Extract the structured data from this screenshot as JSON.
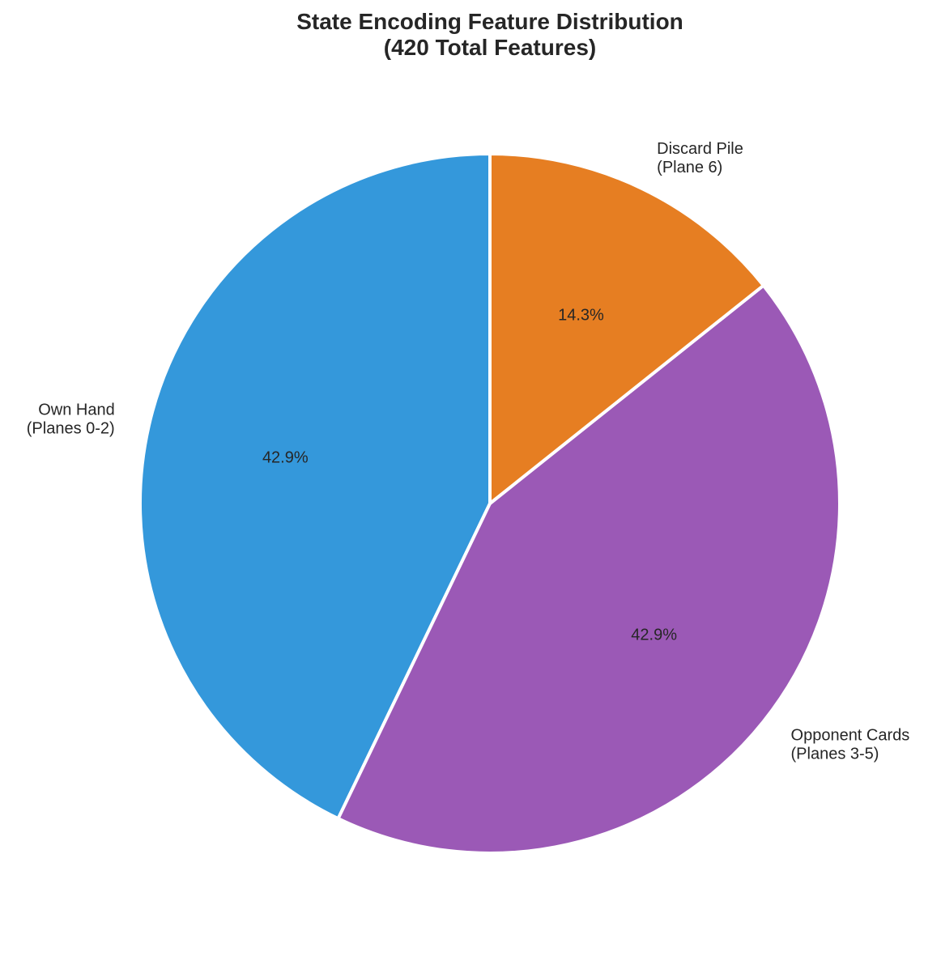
{
  "chart_data": {
    "type": "pie",
    "title": {
      "line1": "State Encoding Feature Distribution",
      "line2": "(420 Total Features)"
    },
    "slices": [
      {
        "label_line1": "Own Hand",
        "label_line2": "(Planes 0-2)",
        "value": 180,
        "percent_text": "42.9%",
        "color": "#3498db"
      },
      {
        "label_line1": "Opponent Cards",
        "label_line2": "(Planes 3-5)",
        "value": 180,
        "percent_text": "42.9%",
        "color": "#9b59b6"
      },
      {
        "label_line1": "Discard Pile",
        "label_line2": "(Plane 6)",
        "value": 60,
        "percent_text": "14.3%",
        "color": "#e67e22"
      }
    ],
    "start_angle_deg": 90,
    "direction": "counterclockwise",
    "edge_color": "#ffffff"
  }
}
